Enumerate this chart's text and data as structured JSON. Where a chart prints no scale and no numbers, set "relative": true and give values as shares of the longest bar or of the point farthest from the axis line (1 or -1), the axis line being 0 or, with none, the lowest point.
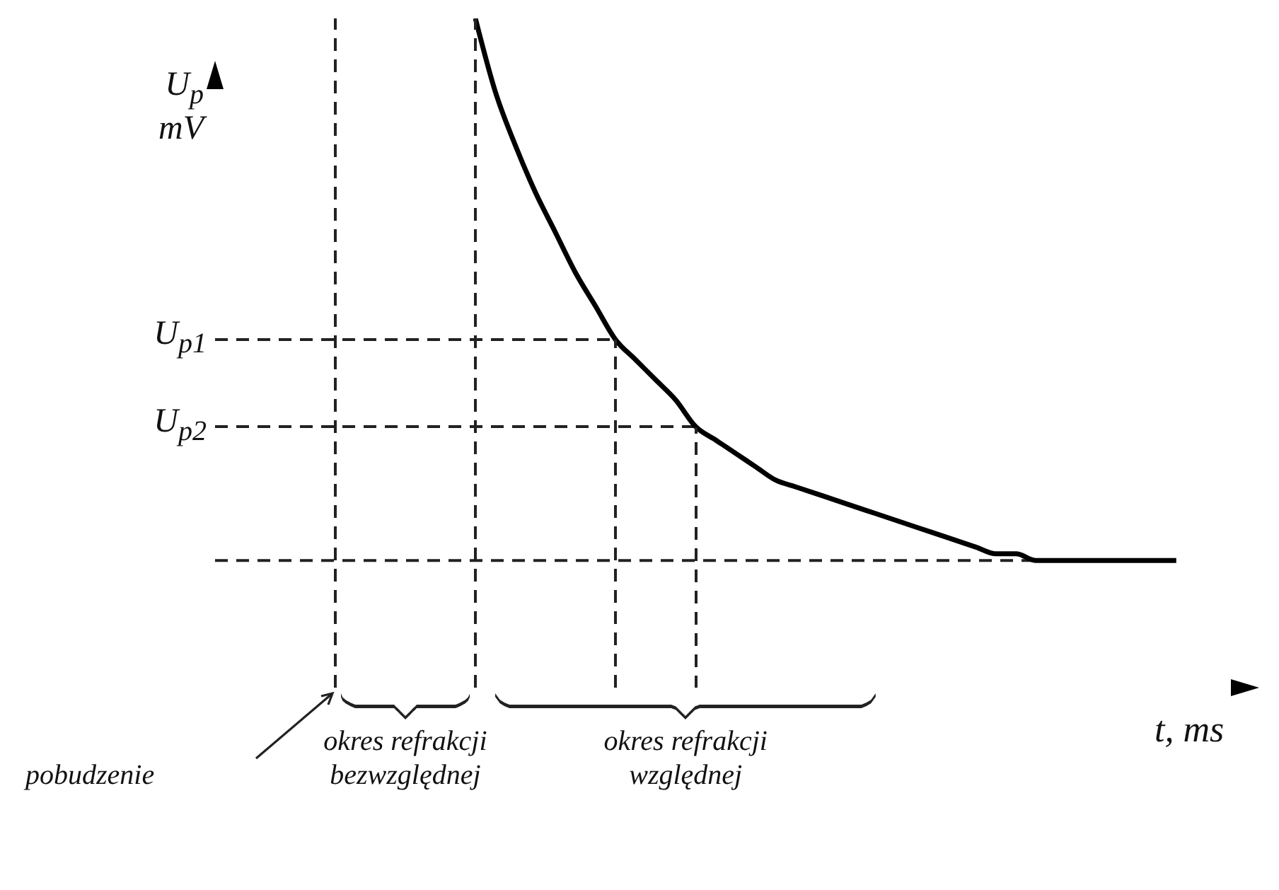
{
  "chart_data": {
    "type": "line",
    "relative": true,
    "categories": [
      null,
      null,
      null,
      null,
      null,
      null,
      null,
      null,
      null,
      null,
      null,
      null,
      null,
      null,
      null,
      null,
      null,
      null,
      null,
      null,
      null,
      null,
      null,
      null,
      null,
      null,
      null,
      null,
      null,
      null,
      null,
      null,
      null,
      null,
      null,
      null,
      null,
      null,
      null,
      null,
      null,
      null,
      null,
      null,
      null,
      null,
      null,
      null,
      null,
      null,
      null,
      null,
      null
    ],
    "series": [
      {
        "color": "#000000",
        "values": [
          null,
          null,
          null,
          null,
          null,
          null,
          null,
          null,
          null,
          null,
          null,
          null,
          null,
          1,
          0.89,
          0.81,
          0.74,
          0.68,
          0.62,
          0.57,
          0.52,
          0.49,
          0.46,
          0.43,
          0.39,
          0.37,
          0.35,
          0.33,
          0.31,
          0.3,
          0.29,
          0.28,
          0.27,
          0.26,
          0.25,
          0.24,
          0.23,
          0.22,
          0.21,
          0.2,
          0.2,
          0.19,
          0.19,
          0.19,
          0.19,
          0.19,
          0.19,
          0.19,
          0.19,
          null,
          null,
          null,
          null
        ]
      }
    ],
    "ylabel": "U$_{p}$ mV",
    "xlabel": "t, ms",
    "marker": "none",
    "ref_lines": [
      {
        "axis": "y",
        "value": 0.52,
        "label": "U$_{p1}$",
        "line_style": "dashed",
        "color": "#222222"
      },
      {
        "axis": "y",
        "value": 0.39,
        "label": "U$_{p2}$",
        "line_style": "dashed",
        "color": "#222222"
      },
      {
        "axis": "y",
        "value": 0.19,
        "label": null,
        "line_style": "dashed",
        "color": "#222222"
      }
    ],
    "annotations": [
      "pobudzenie",
      "okres refrakcji bezwzględnej",
      "okres refrakcji względnej"
    ]
  }
}
